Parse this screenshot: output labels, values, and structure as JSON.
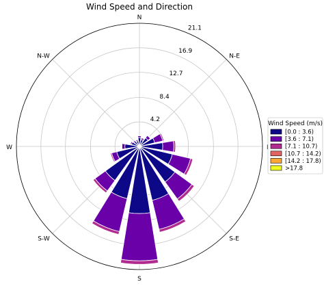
{
  "chart_data": {
    "type": "wind-rose",
    "title": "Wind Speed and Direction",
    "directions": [
      "N",
      "N-E",
      "E",
      "S-E",
      "S",
      "S-W",
      "W",
      "N-W"
    ],
    "radial_ticks": [
      "4.2",
      "8.4",
      "12.7",
      "16.9",
      "21.1"
    ],
    "rmax": 21.1,
    "legend": {
      "title": "Wind Speed (m/s)",
      "placement": "right",
      "bins": [
        {
          "label": "[0.0 : 3.6)",
          "color": "#0d0887"
        },
        {
          "label": "[3.6 : 7.1)",
          "color": "#6a00a8"
        },
        {
          "label": "[7.1 : 10.7)",
          "color": "#b12a90"
        },
        {
          "label": "[10.7 : 14.2)",
          "color": "#e16462"
        },
        {
          "label": "[14.2 : 17.8)",
          "color": "#fca636"
        },
        {
          "label": ">17.8",
          "color": "#f0f921"
        }
      ]
    },
    "sectors": [
      {
        "angle": 0,
        "values": [
          1.5,
          0.3,
          0.0
        ]
      },
      {
        "angle": 22.5,
        "values": [
          1.2,
          0.3,
          0.0
        ]
      },
      {
        "angle": 45,
        "values": [
          1.8,
          0.5,
          0.1
        ]
      },
      {
        "angle": 67.5,
        "values": [
          2.7,
          1.4,
          0.2
        ]
      },
      {
        "angle": 90,
        "values": [
          4.0,
          1.9,
          0.3
        ]
      },
      {
        "angle": 112.5,
        "values": [
          5.8,
          3.2,
          0.4
        ]
      },
      {
        "angle": 135,
        "values": [
          7.5,
          3.6,
          0.5
        ]
      },
      {
        "angle": 157.5,
        "values": [
          9.5,
          5.1,
          0.5
        ]
      },
      {
        "angle": 180,
        "values": [
          11.5,
          8.1,
          0.6
        ]
      },
      {
        "angle": 202.5,
        "values": [
          9.2,
          5.8,
          0.5
        ]
      },
      {
        "angle": 225,
        "values": [
          7.2,
          2.2,
          0.4
        ]
      },
      {
        "angle": 247.5,
        "values": [
          4.0,
          0.9,
          0.2
        ]
      },
      {
        "angle": 270,
        "values": [
          2.5,
          0.5,
          0.1
        ]
      },
      {
        "angle": 292.5,
        "values": [
          1.4,
          0.2,
          0.0
        ]
      },
      {
        "angle": 315,
        "values": [
          1.1,
          0.2,
          0.0
        ]
      },
      {
        "angle": 337.5,
        "values": [
          1.0,
          0.2,
          0.0
        ]
      }
    ]
  }
}
